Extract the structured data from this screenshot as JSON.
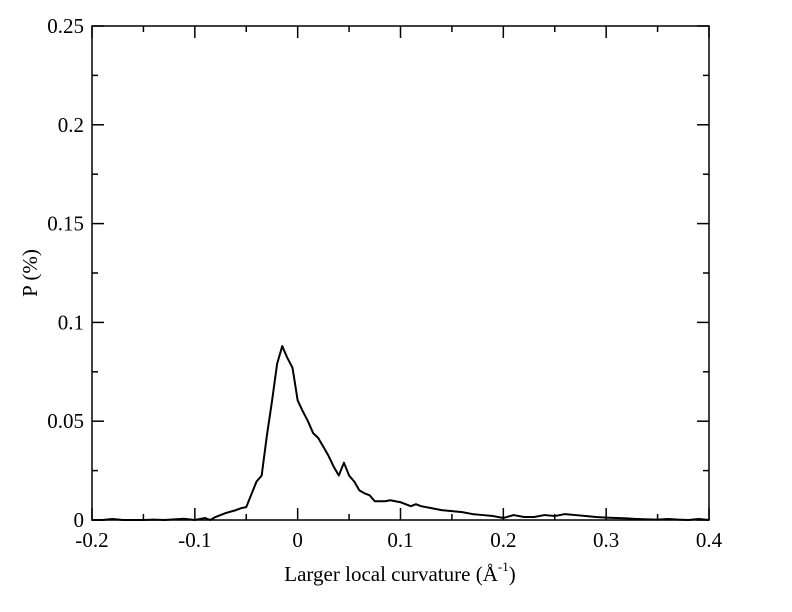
{
  "chart_data": {
    "type": "line",
    "title": "",
    "xlabel": "Larger local curvature (Å",
    "xlabel_sup": "-1",
    "xlabel_close": ")",
    "ylabel": "P (%)",
    "xlim": [
      -0.2,
      0.4
    ],
    "ylim": [
      0,
      0.25
    ],
    "xticks": [
      -0.2,
      -0.1,
      0,
      0.1,
      0.2,
      0.3,
      0.4
    ],
    "xtick_labels": [
      "-0.2",
      "-0.1",
      "0",
      "0.1",
      "0.2",
      "0.3",
      "0.4"
    ],
    "yticks": [
      0,
      0.05,
      0.1,
      0.15,
      0.2,
      0.25
    ],
    "ytick_labels": [
      "0",
      "0.05",
      "0.1",
      "0.15",
      "0.2",
      "0.25"
    ],
    "grid": false,
    "legend": "none",
    "line_color": "#000000",
    "series": [
      {
        "x": [
          -0.2,
          -0.19,
          -0.18,
          -0.17,
          -0.16,
          -0.15,
          -0.14,
          -0.13,
          -0.12,
          -0.11,
          -0.1,
          -0.095,
          -0.09,
          -0.085,
          -0.08,
          -0.07,
          -0.06,
          -0.055,
          -0.05,
          -0.045,
          -0.04,
          -0.035,
          -0.03,
          -0.025,
          -0.02,
          -0.015,
          -0.01,
          -0.005,
          0,
          0.005,
          0.01,
          0.015,
          0.02,
          0.025,
          0.03,
          0.035,
          0.04,
          0.045,
          0.05,
          0.055,
          0.06,
          0.065,
          0.07,
          0.075,
          0.08,
          0.085,
          0.09,
          0.1,
          0.11,
          0.115,
          0.12,
          0.13,
          0.14,
          0.15,
          0.16,
          0.17,
          0.18,
          0.19,
          0.2,
          0.21,
          0.22,
          0.23,
          0.24,
          0.25,
          0.26,
          0.27,
          0.28,
          0.29,
          0.3,
          0.31,
          0.32,
          0.33,
          0.34,
          0.35,
          0.36,
          0.37,
          0.38,
          0.39,
          0.4
        ],
        "y": [
          0.0,
          0.0,
          0.0005,
          0.0,
          0.0,
          0.0,
          0.0002,
          0.0,
          0.0003,
          0.0006,
          0.0,
          0.0005,
          0.001,
          0.0,
          0.0015,
          0.0035,
          0.005,
          0.006,
          0.0065,
          0.013,
          0.0195,
          0.0225,
          0.0425,
          0.06,
          0.079,
          0.088,
          0.082,
          0.077,
          0.0605,
          0.055,
          0.05,
          0.044,
          0.0415,
          0.037,
          0.0325,
          0.027,
          0.0225,
          0.029,
          0.0225,
          0.0195,
          0.015,
          0.0135,
          0.0125,
          0.0095,
          0.0095,
          0.0095,
          0.01,
          0.009,
          0.007,
          0.008,
          0.007,
          0.006,
          0.005,
          0.0045,
          0.004,
          0.003,
          0.0025,
          0.002,
          0.001,
          0.0025,
          0.0015,
          0.0015,
          0.0025,
          0.002,
          0.003,
          0.0025,
          0.002,
          0.0015,
          0.0012,
          0.001,
          0.0008,
          0.0005,
          0.0003,
          0.0002,
          0.0005,
          0.0002,
          0.0,
          0.0005,
          0.0
        ]
      }
    ]
  }
}
